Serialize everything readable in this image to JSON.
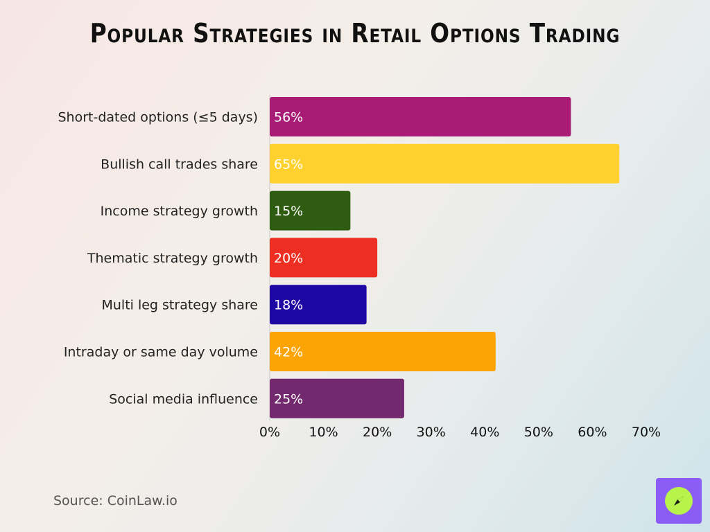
{
  "chart_data": {
    "type": "bar",
    "orientation": "horizontal",
    "title": "Popular Strategies in Retail Options Trading",
    "categories": [
      "Short-dated options (≤5 days)",
      "Bullish call trades share",
      "Income strategy growth",
      "Thematic strategy growth",
      "Multi leg strategy share",
      "Intraday or same day volume",
      "Social media influence"
    ],
    "values": [
      56,
      65,
      15,
      20,
      18,
      42,
      25
    ],
    "value_labels": [
      "56%",
      "65%",
      "15%",
      "20%",
      "18%",
      "42%",
      "25%"
    ],
    "colors": [
      "#a81c76",
      "#ffd12e",
      "#2e5c10",
      "#ec2f22",
      "#1e07a3",
      "#fba404",
      "#73296e"
    ],
    "xlim": [
      0,
      70
    ],
    "xticks": [
      0,
      10,
      20,
      30,
      40,
      50,
      60,
      70
    ],
    "xtick_labels": [
      "0%",
      "10%",
      "20%",
      "30%",
      "40%",
      "50%",
      "60%",
      "70%"
    ],
    "xlabel": "",
    "ylabel": "",
    "grid": false,
    "legend": "none"
  },
  "footer": {
    "source": "Source: CoinLaw.io"
  },
  "logo": {
    "icon": "compass-icon",
    "background": "#8b5cf6",
    "accent": "#b7f34a"
  }
}
